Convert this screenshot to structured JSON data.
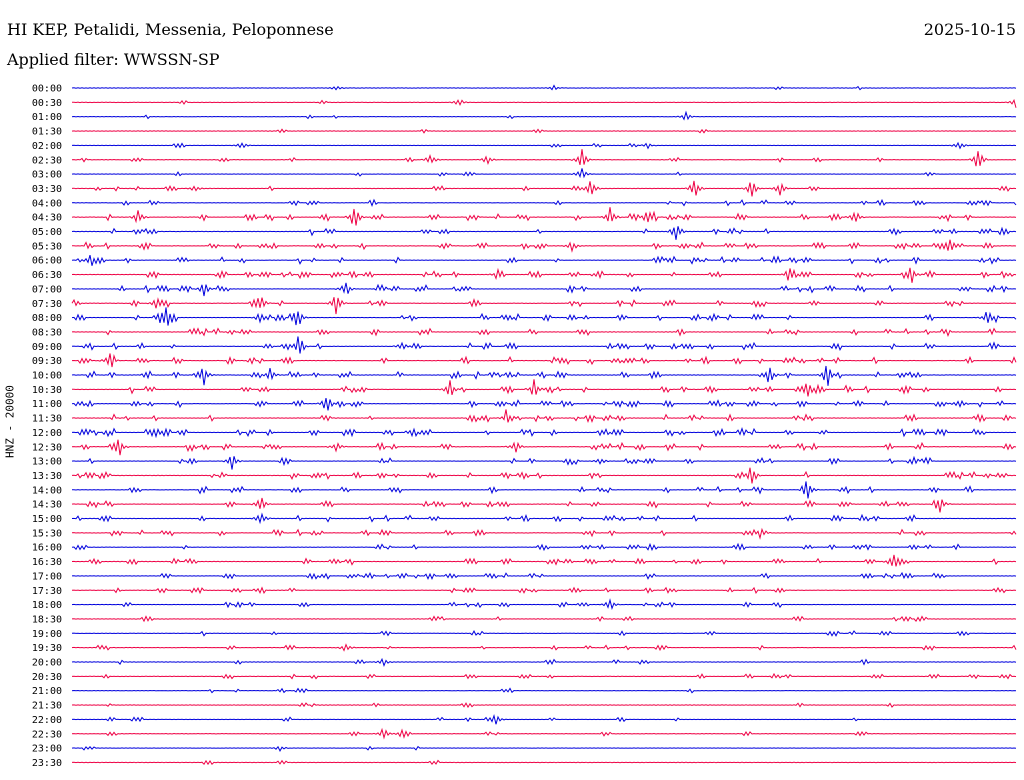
{
  "header": {
    "station": "HI KEP, Petalidi, Messenia, Peloponnese",
    "date": "2025-10-15",
    "filter": "Applied filter: WWSSN-SP"
  },
  "channel_label": "HNZ - 20000",
  "colors": {
    "even_trace": "#0000dd",
    "odd_trace": "#ee0044",
    "background": "#ffffff",
    "text": "#000000"
  },
  "traces": [
    {
      "time": "00:00",
      "activity": 0.05
    },
    {
      "time": "00:30",
      "activity": 0.05
    },
    {
      "time": "01:00",
      "activity": 0.06
    },
    {
      "time": "01:30",
      "activity": 0.07
    },
    {
      "time": "02:00",
      "activity": 0.12
    },
    {
      "time": "02:30",
      "activity": 0.2
    },
    {
      "time": "03:00",
      "activity": 0.22
    },
    {
      "time": "03:30",
      "activity": 0.35
    },
    {
      "time": "04:00",
      "activity": 0.5
    },
    {
      "time": "04:30",
      "activity": 0.85
    },
    {
      "time": "05:00",
      "activity": 0.85
    },
    {
      "time": "05:30",
      "activity": 0.8
    },
    {
      "time": "06:00",
      "activity": 0.8
    },
    {
      "time": "06:30",
      "activity": 0.75
    },
    {
      "time": "07:00",
      "activity": 0.85
    },
    {
      "time": "07:30",
      "activity": 0.9
    },
    {
      "time": "08:00",
      "activity": 0.9
    },
    {
      "time": "08:30",
      "activity": 0.85
    },
    {
      "time": "09:00",
      "activity": 0.85
    },
    {
      "time": "09:30",
      "activity": 0.9
    },
    {
      "time": "10:00",
      "activity": 0.9
    },
    {
      "time": "10:30",
      "activity": 0.95
    },
    {
      "time": "11:00",
      "activity": 0.9
    },
    {
      "time": "11:30",
      "activity": 0.85
    },
    {
      "time": "12:00",
      "activity": 0.9
    },
    {
      "time": "12:30",
      "activity": 0.95
    },
    {
      "time": "13:00",
      "activity": 0.85
    },
    {
      "time": "13:30",
      "activity": 0.8
    },
    {
      "time": "14:00",
      "activity": 0.8
    },
    {
      "time": "14:30",
      "activity": 0.75
    },
    {
      "time": "15:00",
      "activity": 0.7
    },
    {
      "time": "15:30",
      "activity": 0.65
    },
    {
      "time": "16:00",
      "activity": 0.65
    },
    {
      "time": "16:30",
      "activity": 0.7
    },
    {
      "time": "17:00",
      "activity": 0.55
    },
    {
      "time": "17:30",
      "activity": 0.5
    },
    {
      "time": "18:00",
      "activity": 0.45
    },
    {
      "time": "18:30",
      "activity": 0.4
    },
    {
      "time": "19:00",
      "activity": 0.4
    },
    {
      "time": "19:30",
      "activity": 0.35
    },
    {
      "time": "20:00",
      "activity": 0.3
    },
    {
      "time": "20:30",
      "activity": 0.3
    },
    {
      "time": "21:00",
      "activity": 0.25
    },
    {
      "time": "21:30",
      "activity": 0.22
    },
    {
      "time": "22:00",
      "activity": 0.25
    },
    {
      "time": "22:30",
      "activity": 0.18
    },
    {
      "time": "23:00",
      "activity": 0.1
    },
    {
      "time": "23:30",
      "activity": 0.12
    }
  ],
  "events": [
    {
      "time": "00:00",
      "t": 0.28,
      "amp": 3
    },
    {
      "time": "00:00",
      "t": 0.51,
      "amp": 3
    },
    {
      "time": "00:30",
      "t": 0.41,
      "amp": 5
    },
    {
      "time": "00:30",
      "t": 1.0,
      "amp": 7
    },
    {
      "time": "01:00",
      "t": 0.65,
      "amp": 5
    },
    {
      "time": "02:00",
      "t": 0.18,
      "amp": 4
    },
    {
      "time": "02:00",
      "t": 0.61,
      "amp": 3
    },
    {
      "time": "02:00",
      "t": 0.94,
      "amp": 5
    },
    {
      "time": "02:30",
      "t": 0.38,
      "amp": 7
    },
    {
      "time": "02:30",
      "t": 0.44,
      "amp": 5
    },
    {
      "time": "02:30",
      "t": 0.54,
      "amp": 12
    },
    {
      "time": "02:30",
      "t": 0.96,
      "amp": 14
    },
    {
      "time": "03:00",
      "t": 0.54,
      "amp": 8
    },
    {
      "time": "03:30",
      "t": 0.13,
      "amp": 4
    },
    {
      "time": "03:30",
      "t": 0.55,
      "amp": 12
    },
    {
      "time": "03:30",
      "t": 0.66,
      "amp": 10
    },
    {
      "time": "03:30",
      "t": 0.72,
      "amp": 12
    },
    {
      "time": "03:30",
      "t": 0.75,
      "amp": 8
    },
    {
      "time": "04:30",
      "t": 0.07,
      "amp": 8
    },
    {
      "time": "04:30",
      "t": 0.3,
      "amp": 12
    },
    {
      "time": "04:30",
      "t": 0.57,
      "amp": 14
    },
    {
      "time": "04:30",
      "t": 0.61,
      "amp": 10
    },
    {
      "time": "04:30",
      "t": 0.83,
      "amp": 8
    },
    {
      "time": "05:00",
      "t": 0.64,
      "amp": 14
    },
    {
      "time": "05:30",
      "t": 0.53,
      "amp": 6
    },
    {
      "time": "05:30",
      "t": 0.93,
      "amp": 10
    },
    {
      "time": "06:00",
      "t": 0.02,
      "amp": 8
    },
    {
      "time": "06:30",
      "t": 0.45,
      "amp": 4
    },
    {
      "time": "06:30",
      "t": 0.76,
      "amp": 6
    },
    {
      "time": "06:30",
      "t": 0.89,
      "amp": 8
    },
    {
      "time": "07:00",
      "t": 0.14,
      "amp": 8
    },
    {
      "time": "07:00",
      "t": 0.29,
      "amp": 10
    },
    {
      "time": "07:30",
      "t": 0.0,
      "amp": 12
    },
    {
      "time": "07:30",
      "t": 0.09,
      "amp": 8
    },
    {
      "time": "07:30",
      "t": 0.2,
      "amp": 10
    },
    {
      "time": "07:30",
      "t": 0.28,
      "amp": 14
    },
    {
      "time": "08:00",
      "t": 0.1,
      "amp": 12
    },
    {
      "time": "08:00",
      "t": 0.24,
      "amp": 10
    },
    {
      "time": "08:00",
      "t": 0.2,
      "amp": 8
    },
    {
      "time": "08:00",
      "t": 0.97,
      "amp": 10
    },
    {
      "time": "09:00",
      "t": 0.24,
      "amp": 10
    },
    {
      "time": "09:00",
      "t": 0.35,
      "amp": 6
    },
    {
      "time": "09:30",
      "t": 0.04,
      "amp": 10
    },
    {
      "time": "10:00",
      "t": 0.14,
      "amp": 10
    },
    {
      "time": "10:00",
      "t": 0.21,
      "amp": 8
    },
    {
      "time": "10:00",
      "t": 0.74,
      "amp": 8
    },
    {
      "time": "10:00",
      "t": 0.8,
      "amp": 14
    },
    {
      "time": "10:30",
      "t": 0.4,
      "amp": 12
    },
    {
      "time": "10:30",
      "t": 0.49,
      "amp": 12
    },
    {
      "time": "10:30",
      "t": 0.78,
      "amp": 10
    },
    {
      "time": "11:00",
      "t": 0.27,
      "amp": 12
    },
    {
      "time": "11:00",
      "t": 0.94,
      "amp": 6
    },
    {
      "time": "11:30",
      "t": 0.46,
      "amp": 6
    },
    {
      "time": "12:00",
      "t": 0.09,
      "amp": 6
    },
    {
      "time": "12:30",
      "t": 0.05,
      "amp": 12
    },
    {
      "time": "12:30",
      "t": 0.28,
      "amp": 6
    },
    {
      "time": "12:30",
      "t": 0.47,
      "amp": 8
    },
    {
      "time": "13:00",
      "t": 0.17,
      "amp": 10
    },
    {
      "time": "13:00",
      "t": 0.56,
      "amp": 4
    },
    {
      "time": "13:30",
      "t": 0.72,
      "amp": 14
    },
    {
      "time": "14:00",
      "t": 0.78,
      "amp": 12
    },
    {
      "time": "14:30",
      "t": 0.2,
      "amp": 10
    },
    {
      "time": "14:30",
      "t": 0.92,
      "amp": 8
    },
    {
      "time": "15:00",
      "t": 0.2,
      "amp": 8
    },
    {
      "time": "15:30",
      "t": 0.73,
      "amp": 8
    },
    {
      "time": "16:30",
      "t": 0.87,
      "amp": 12
    },
    {
      "time": "18:00",
      "t": 0.57,
      "amp": 8
    },
    {
      "time": "19:30",
      "t": 0.29,
      "amp": 5
    },
    {
      "time": "20:00",
      "t": 0.33,
      "amp": 5
    },
    {
      "time": "22:00",
      "t": 0.45,
      "amp": 4
    },
    {
      "time": "22:30",
      "t": 0.33,
      "amp": 7
    },
    {
      "time": "22:30",
      "t": 0.35,
      "amp": 5
    },
    {
      "time": "23:00",
      "t": 0.22,
      "amp": 3
    }
  ]
}
